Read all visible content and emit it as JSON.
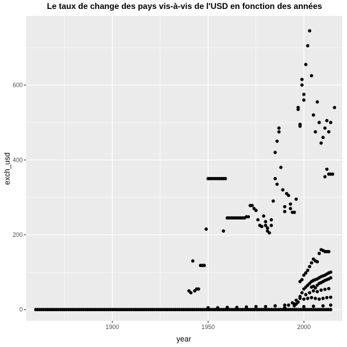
{
  "chart_data": {
    "type": "scatter",
    "title": "Le taux de change des pays vis-à-vis de l'USD en fonction des années",
    "xlabel": "year",
    "ylabel": "exch_usd",
    "xlim": [
      1855,
      2020
    ],
    "ylim": [
      -30,
      785
    ],
    "x_ticks": [
      1900,
      1950,
      2000
    ],
    "y_ticks": [
      0,
      200,
      400,
      600
    ],
    "grid": true,
    "legend": "none",
    "colors": {
      "panel": "#ebebeb",
      "grid": "#ffffff",
      "point": "#000000",
      "tick_text": "#4d4d4d"
    },
    "baseline_series": {
      "note_free": true,
      "x_range": [
        1860,
        2014
      ],
      "y": 0
    },
    "points": [
      {
        "x": 1940,
        "y": 50
      },
      {
        "x": 1941,
        "y": 45
      },
      {
        "x": 1942,
        "y": 130
      },
      {
        "x": 1943,
        "y": 50
      },
      {
        "x": 1944,
        "y": 55
      },
      {
        "x": 1945,
        "y": 55
      },
      {
        "x": 1946,
        "y": 118
      },
      {
        "x": 1947,
        "y": 118
      },
      {
        "x": 1948,
        "y": 118
      },
      {
        "x": 1949,
        "y": 215
      },
      {
        "x": 1950,
        "y": 350
      },
      {
        "x": 1951,
        "y": 350
      },
      {
        "x": 1952,
        "y": 350
      },
      {
        "x": 1953,
        "y": 350
      },
      {
        "x": 1954,
        "y": 350
      },
      {
        "x": 1955,
        "y": 350
      },
      {
        "x": 1956,
        "y": 350
      },
      {
        "x": 1957,
        "y": 350
      },
      {
        "x": 1958,
        "y": 350
      },
      {
        "x": 1959,
        "y": 350
      },
      {
        "x": 1958,
        "y": 210
      },
      {
        "x": 1960,
        "y": 245
      },
      {
        "x": 1961,
        "y": 245
      },
      {
        "x": 1962,
        "y": 245
      },
      {
        "x": 1963,
        "y": 245
      },
      {
        "x": 1964,
        "y": 245
      },
      {
        "x": 1965,
        "y": 245
      },
      {
        "x": 1966,
        "y": 245
      },
      {
        "x": 1967,
        "y": 245
      },
      {
        "x": 1968,
        "y": 245
      },
      {
        "x": 1969,
        "y": 245
      },
      {
        "x": 1970,
        "y": 248
      },
      {
        "x": 1971,
        "y": 248
      },
      {
        "x": 1972,
        "y": 278
      },
      {
        "x": 1973,
        "y": 278
      },
      {
        "x": 1974,
        "y": 270
      },
      {
        "x": 1975,
        "y": 265
      },
      {
        "x": 1976,
        "y": 240
      },
      {
        "x": 1977,
        "y": 225
      },
      {
        "x": 1978,
        "y": 222
      },
      {
        "x": 1979,
        "y": 250
      },
      {
        "x": 1980,
        "y": 225
      },
      {
        "x": 1981,
        "y": 210
      },
      {
        "x": 1982,
        "y": 205
      },
      {
        "x": 1983,
        "y": 240
      },
      {
        "x": 1980,
        "y": 235
      },
      {
        "x": 1981,
        "y": 218
      },
      {
        "x": 1983,
        "y": 225
      },
      {
        "x": 1984,
        "y": 290
      },
      {
        "x": 1985,
        "y": 350
      },
      {
        "x": 1986,
        "y": 335
      },
      {
        "x": 1985,
        "y": 420
      },
      {
        "x": 1986,
        "y": 450
      },
      {
        "x": 1987,
        "y": 485
      },
      {
        "x": 1987,
        "y": 475
      },
      {
        "x": 1988,
        "y": 380
      },
      {
        "x": 1989,
        "y": 320
      },
      {
        "x": 1990,
        "y": 275
      },
      {
        "x": 1991,
        "y": 310
      },
      {
        "x": 1992,
        "y": 305
      },
      {
        "x": 1993,
        "y": 270
      },
      {
        "x": 1994,
        "y": 260
      },
      {
        "x": 1995,
        "y": 260
      },
      {
        "x": 1990,
        "y": 262
      },
      {
        "x": 1993,
        "y": 282
      },
      {
        "x": 1996,
        "y": 295
      },
      {
        "x": 1997,
        "y": 535
      },
      {
        "x": 1998,
        "y": 490
      },
      {
        "x": 1997,
        "y": 540
      },
      {
        "x": 1998,
        "y": 495
      },
      {
        "x": 1999,
        "y": 615
      },
      {
        "x": 1999,
        "y": 600
      },
      {
        "x": 2000,
        "y": 575
      },
      {
        "x": 2000,
        "y": 560
      },
      {
        "x": 2001,
        "y": 655
      },
      {
        "x": 2002,
        "y": 705
      },
      {
        "x": 2003,
        "y": 745
      },
      {
        "x": 2004,
        "y": 625
      },
      {
        "x": 2005,
        "y": 520
      },
      {
        "x": 2006,
        "y": 475
      },
      {
        "x": 2007,
        "y": 555
      },
      {
        "x": 2008,
        "y": 500
      },
      {
        "x": 2009,
        "y": 445
      },
      {
        "x": 2010,
        "y": 460
      },
      {
        "x": 2011,
        "y": 485
      },
      {
        "x": 2011,
        "y": 355
      },
      {
        "x": 2012,
        "y": 375
      },
      {
        "x": 2012,
        "y": 505
      },
      {
        "x": 2013,
        "y": 362
      },
      {
        "x": 2013,
        "y": 475
      },
      {
        "x": 2014,
        "y": 362
      },
      {
        "x": 2014,
        "y": 500
      },
      {
        "x": 2015,
        "y": 362
      },
      {
        "x": 2016,
        "y": 540
      },
      {
        "x": 1995,
        "y": 10
      },
      {
        "x": 1996,
        "y": 15
      },
      {
        "x": 1997,
        "y": 20
      },
      {
        "x": 1998,
        "y": 30
      },
      {
        "x": 1999,
        "y": 45
      },
      {
        "x": 2000,
        "y": 55
      },
      {
        "x": 2001,
        "y": 60
      },
      {
        "x": 2002,
        "y": 65
      },
      {
        "x": 2003,
        "y": 70
      },
      {
        "x": 2004,
        "y": 75
      },
      {
        "x": 2005,
        "y": 78
      },
      {
        "x": 2006,
        "y": 80
      },
      {
        "x": 2007,
        "y": 82
      },
      {
        "x": 2008,
        "y": 85
      },
      {
        "x": 2009,
        "y": 88
      },
      {
        "x": 2010,
        "y": 90
      },
      {
        "x": 2011,
        "y": 92
      },
      {
        "x": 2012,
        "y": 95
      },
      {
        "x": 2013,
        "y": 98
      },
      {
        "x": 2014,
        "y": 100
      },
      {
        "x": 1998,
        "y": 75
      },
      {
        "x": 1999,
        "y": 80
      },
      {
        "x": 2000,
        "y": 92
      },
      {
        "x": 2001,
        "y": 98
      },
      {
        "x": 2002,
        "y": 105
      },
      {
        "x": 2003,
        "y": 115
      },
      {
        "x": 2004,
        "y": 125
      },
      {
        "x": 2005,
        "y": 135
      },
      {
        "x": 2006,
        "y": 130
      },
      {
        "x": 2007,
        "y": 128
      },
      {
        "x": 2008,
        "y": 150
      },
      {
        "x": 2009,
        "y": 160
      },
      {
        "x": 2010,
        "y": 158
      },
      {
        "x": 2011,
        "y": 155
      },
      {
        "x": 2012,
        "y": 155
      },
      {
        "x": 2013,
        "y": 155
      },
      {
        "x": 2004,
        "y": 60
      },
      {
        "x": 2005,
        "y": 62
      },
      {
        "x": 2006,
        "y": 58
      },
      {
        "x": 2007,
        "y": 65
      },
      {
        "x": 2008,
        "y": 70
      },
      {
        "x": 2009,
        "y": 72
      },
      {
        "x": 2010,
        "y": 75
      },
      {
        "x": 2011,
        "y": 78
      },
      {
        "x": 2012,
        "y": 80
      },
      {
        "x": 2013,
        "y": 82
      },
      {
        "x": 2014,
        "y": 85
      },
      {
        "x": 1990,
        "y": 5
      },
      {
        "x": 1992,
        "y": 12
      },
      {
        "x": 1994,
        "y": 18
      },
      {
        "x": 1996,
        "y": 25
      },
      {
        "x": 1998,
        "y": 35
      },
      {
        "x": 2000,
        "y": 28
      },
      {
        "x": 2002,
        "y": 30
      },
      {
        "x": 2004,
        "y": 32
      },
      {
        "x": 2006,
        "y": 30
      },
      {
        "x": 2008,
        "y": 28
      },
      {
        "x": 2010,
        "y": 30
      },
      {
        "x": 2012,
        "y": 32
      },
      {
        "x": 2014,
        "y": 33
      },
      {
        "x": 2001,
        "y": 40
      },
      {
        "x": 2003,
        "y": 45
      },
      {
        "x": 2005,
        "y": 50
      },
      {
        "x": 2007,
        "y": 48
      },
      {
        "x": 2009,
        "y": 52
      },
      {
        "x": 2011,
        "y": 54
      },
      {
        "x": 2013,
        "y": 56
      },
      {
        "x": 1950,
        "y": 5
      },
      {
        "x": 1955,
        "y": 5
      },
      {
        "x": 1960,
        "y": 6
      },
      {
        "x": 1965,
        "y": 6
      },
      {
        "x": 1970,
        "y": 7
      },
      {
        "x": 1975,
        "y": 8
      },
      {
        "x": 1980,
        "y": 8
      },
      {
        "x": 1985,
        "y": 10
      },
      {
        "x": 1990,
        "y": 12
      },
      {
        "x": 1995,
        "y": 15
      },
      {
        "x": 2000,
        "y": 8
      },
      {
        "x": 2005,
        "y": 9
      },
      {
        "x": 2010,
        "y": 10
      },
      {
        "x": 2014,
        "y": 12
      }
    ]
  }
}
